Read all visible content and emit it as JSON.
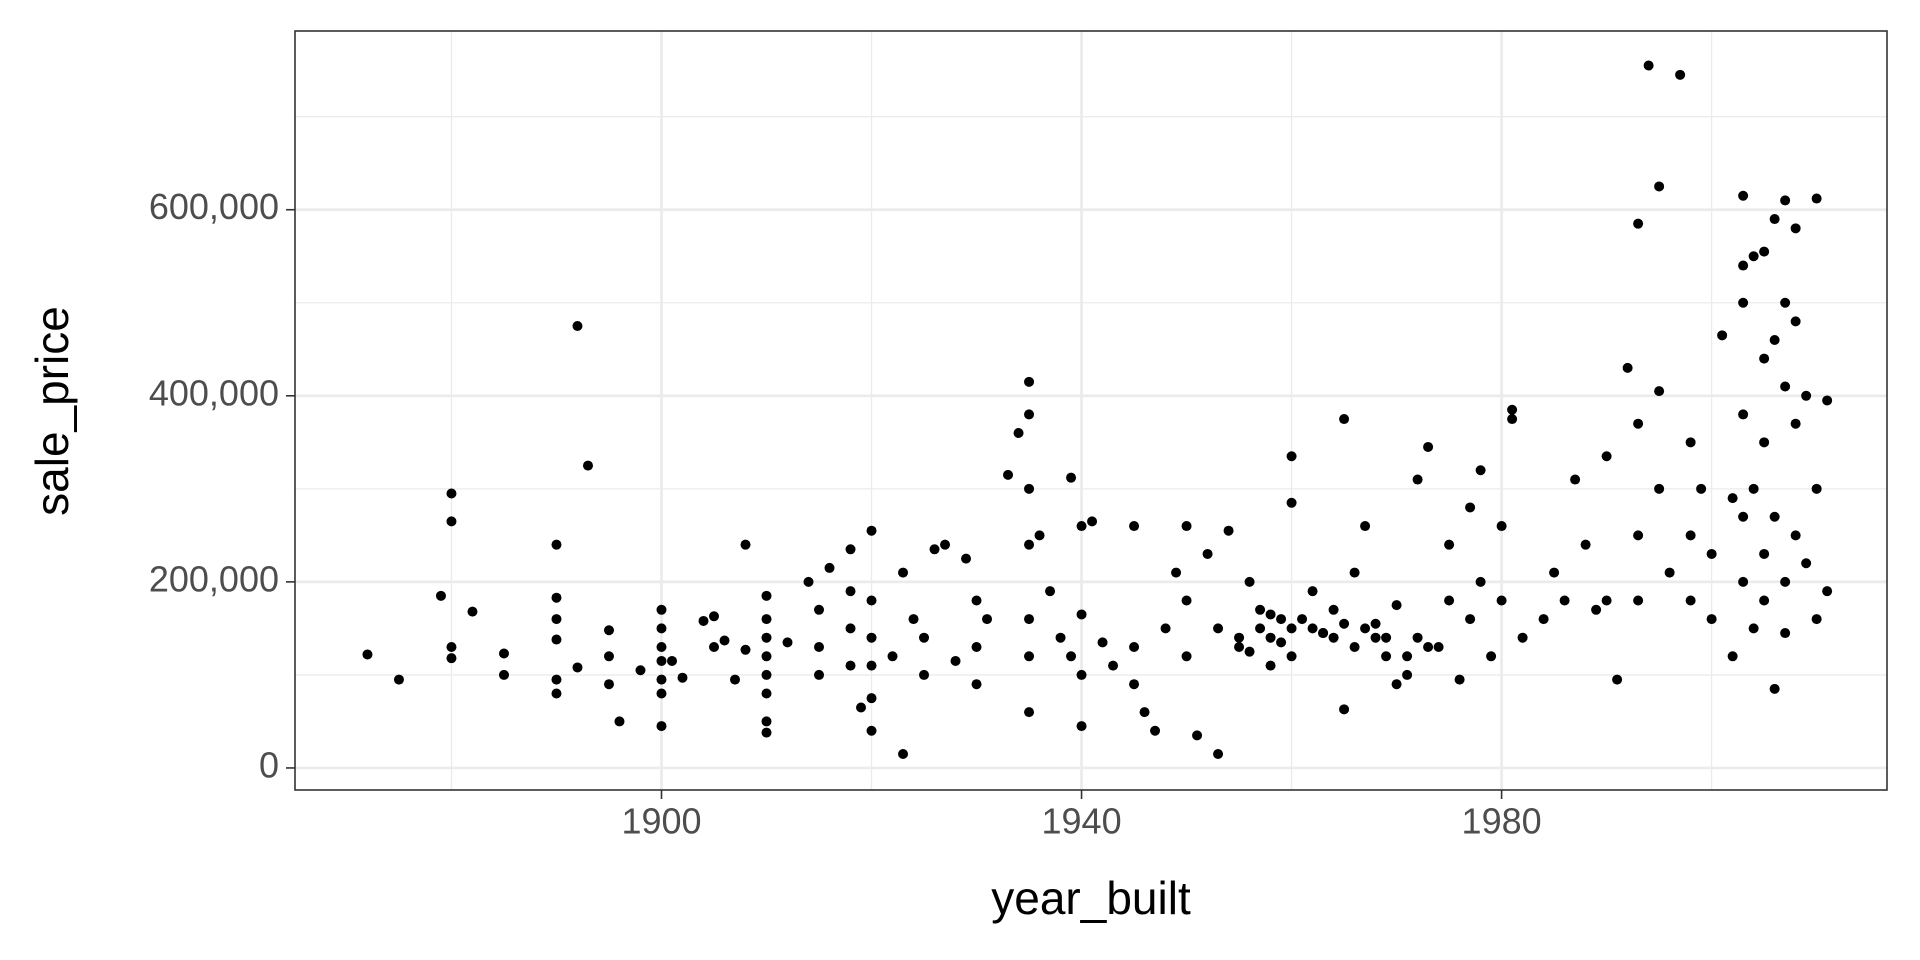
{
  "chart_data": {
    "type": "scatter",
    "x_label": "year_built",
    "y_label": "sale_price",
    "xlim": [
      1865.1,
      2016.7
    ],
    "ylim": [
      -23700,
      792100
    ],
    "xticks": [
      1900,
      1940,
      1980
    ],
    "yticks": [
      0,
      {
        "value": 200000,
        "label": "200,000"
      },
      {
        "value": 400000,
        "label": "400,000"
      },
      {
        "value": 600000,
        "label": "600,000"
      }
    ],
    "x_minor_grid": [
      1880,
      1920,
      1960,
      2000
    ],
    "y_minor_grid": [
      100000,
      300000,
      500000,
      700000
    ],
    "grid": true,
    "color": "#000000",
    "x": [
      1872,
      1875,
      1880,
      1880,
      1880,
      1880,
      1879,
      1882,
      1885,
      1885,
      1890,
      1890,
      1890,
      1890,
      1890,
      1890,
      1892,
      1892,
      1893,
      1895,
      1895,
      1895,
      1896,
      1898,
      1900,
      1900,
      1900,
      1900,
      1900,
      1900,
      1900,
      1901,
      1902,
      1904,
      1905,
      1905,
      1906,
      1907,
      1908,
      1908,
      1910,
      1910,
      1910,
      1910,
      1910,
      1910,
      1910,
      1910,
      1912,
      1914,
      1915,
      1915,
      1915,
      1916,
      1918,
      1918,
      1918,
      1918,
      1919,
      1920,
      1920,
      1920,
      1920,
      1920,
      1920,
      1922,
      1923,
      1923,
      1924,
      1925,
      1925,
      1926,
      1927,
      1928,
      1929,
      1930,
      1930,
      1930,
      1931,
      1933,
      1934,
      1935,
      1935,
      1935,
      1935,
      1935,
      1935,
      1935,
      1936,
      1937,
      1938,
      1939,
      1939,
      1940,
      1940,
      1940,
      1940,
      1941,
      1942,
      1943,
      1945,
      1945,
      1945,
      1946,
      1947,
      1948,
      1949,
      1950,
      1950,
      1950,
      1951,
      1952,
      1953,
      1953,
      1954,
      1955,
      1956,
      1957,
      1958,
      1958,
      1959,
      1960,
      1960,
      1960,
      1960,
      1962,
      1963,
      1964,
      1965,
      1965,
      1966,
      1967,
      1968,
      1969,
      1970,
      1970,
      1971,
      1972,
      1972,
      1973,
      1974,
      1975,
      1975,
      1976,
      1977,
      1977,
      1978,
      1978,
      1979,
      1980,
      1980,
      1981,
      1981,
      1982,
      1984,
      1985,
      1986,
      1987,
      1988,
      1989,
      1990,
      1990,
      1991,
      1992,
      1993,
      1993,
      1993,
      1993,
      1994,
      1995,
      1995,
      1995,
      1996,
      1997,
      1998,
      1998,
      1998,
      1999,
      2000,
      2000,
      2001,
      2002,
      2002,
      2003,
      2003,
      2003,
      2003,
      2003,
      2003,
      2004,
      2004,
      2004,
      2005,
      2005,
      2005,
      2005,
      2005,
      2006,
      2006,
      2006,
      2006,
      2007,
      2007,
      2007,
      2007,
      2007,
      2008,
      2008,
      2008,
      2008,
      2009,
      2009,
      2010,
      2010,
      2010,
      2011,
      2011,
      1955,
      1957,
      1959,
      1961,
      1963,
      1965,
      1967,
      1969,
      1971,
      1973,
      1956,
      1958,
      1962,
      1964,
      1966,
      1968
    ],
    "values": [
      122000,
      95000,
      295000,
      265000,
      130000,
      118000,
      185000,
      168000,
      123000,
      100000,
      240000,
      183000,
      160000,
      138000,
      95000,
      80000,
      475000,
      108000,
      325000,
      148000,
      120000,
      90000,
      50000,
      105000,
      170000,
      150000,
      130000,
      115000,
      95000,
      80000,
      45000,
      115000,
      97000,
      158000,
      163000,
      130000,
      137000,
      95000,
      240000,
      127000,
      185000,
      160000,
      140000,
      120000,
      100000,
      80000,
      50000,
      38000,
      135000,
      200000,
      170000,
      130000,
      100000,
      215000,
      235000,
      190000,
      150000,
      110000,
      65000,
      255000,
      180000,
      140000,
      110000,
      75000,
      40000,
      120000,
      210000,
      15000,
      160000,
      140000,
      100000,
      235000,
      240000,
      115000,
      225000,
      180000,
      130000,
      90000,
      160000,
      315000,
      360000,
      415000,
      380000,
      300000,
      240000,
      160000,
      120000,
      60000,
      250000,
      190000,
      140000,
      312000,
      120000,
      260000,
      165000,
      100000,
      45000,
      265000,
      135000,
      110000,
      260000,
      130000,
      90000,
      60000,
      40000,
      150000,
      210000,
      180000,
      120000,
      260000,
      35000,
      230000,
      15000,
      150000,
      255000,
      130000,
      200000,
      170000,
      140000,
      110000,
      160000,
      335000,
      285000,
      150000,
      120000,
      190000,
      145000,
      170000,
      375000,
      63000,
      210000,
      260000,
      140000,
      120000,
      175000,
      90000,
      100000,
      310000,
      140000,
      345000,
      130000,
      240000,
      180000,
      95000,
      280000,
      160000,
      320000,
      200000,
      120000,
      260000,
      180000,
      385000,
      375000,
      140000,
      160000,
      210000,
      180000,
      310000,
      240000,
      170000,
      335000,
      180000,
      95000,
      430000,
      585000,
      370000,
      250000,
      180000,
      755000,
      625000,
      405000,
      300000,
      210000,
      745000,
      350000,
      250000,
      180000,
      300000,
      230000,
      160000,
      465000,
      290000,
      120000,
      615000,
      540000,
      500000,
      380000,
      270000,
      200000,
      550000,
      300000,
      150000,
      555000,
      440000,
      350000,
      230000,
      180000,
      590000,
      460000,
      85000,
      270000,
      610000,
      500000,
      410000,
      200000,
      145000,
      580000,
      480000,
      370000,
      250000,
      400000,
      220000,
      612000,
      300000,
      160000,
      395000,
      190000,
      140000,
      150000,
      135000,
      160000,
      145000,
      155000,
      150000,
      140000,
      120000,
      130000,
      125000,
      165000,
      150000,
      140000,
      130000,
      155000
    ]
  }
}
